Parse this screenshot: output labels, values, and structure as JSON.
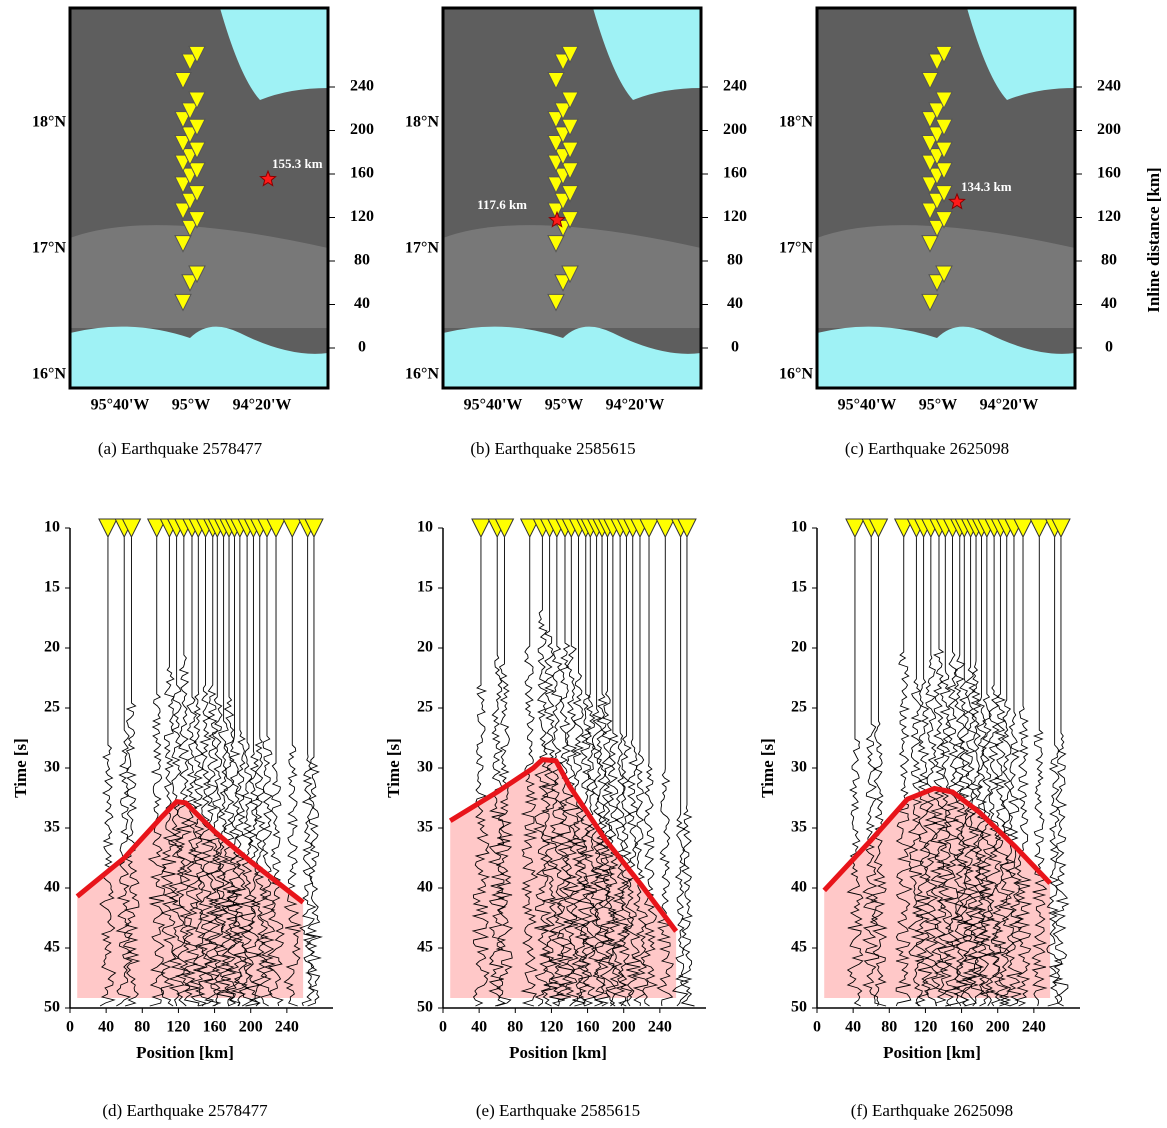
{
  "stations": [
    42,
    60,
    68,
    96,
    110,
    118,
    126,
    135,
    142,
    150,
    158,
    163,
    170,
    176,
    182,
    188,
    196,
    203,
    210,
    218,
    228,
    246,
    263,
    270
  ],
  "maps": {
    "lat_ticks": [
      "16°N",
      "17°N",
      "18°N"
    ],
    "lon_ticks": [
      "95°40'W",
      "95°W",
      "94°20'W"
    ],
    "inline_ticks": [
      0,
      40,
      80,
      120,
      160,
      200,
      240
    ],
    "inline_label": "Inline distance [km]",
    "panels": [
      {
        "caption": "(a) Earthquake 2578477",
        "event_distance": 155.3,
        "event_label": "155.3 km"
      },
      {
        "caption": "(b) Earthquake 2585615",
        "event_distance": 117.6,
        "event_label": "117.6 km"
      },
      {
        "caption": "(c) Earthquake 2625098",
        "event_distance": 134.3,
        "event_label": "134.3 km"
      }
    ]
  },
  "seismograms": {
    "x_label": "Position [km]",
    "y_label": "Time [s]",
    "xlim": [
      0,
      280
    ],
    "ylim": [
      10,
      50
    ],
    "xticks": [
      0,
      40,
      80,
      120,
      160,
      200,
      240
    ],
    "yticks": [
      10,
      15,
      20,
      25,
      30,
      35,
      40,
      45,
      50
    ],
    "panels": [
      {
        "caption": "(d) Earthquake 2578477",
        "curve": {
          "x": [
            8,
            60,
            100,
            118,
            128,
            160,
            200,
            258
          ],
          "y": [
            40.7,
            37.5,
            34.2,
            32.8,
            32.9,
            35.3,
            37.8,
            41.2
          ]
        }
      },
      {
        "caption": "(e) Earthquake 2585615",
        "curve": {
          "x": [
            8,
            60,
            100,
            110,
            125,
            140,
            180,
            220,
            258
          ],
          "y": [
            34.4,
            32,
            30,
            29.3,
            29.4,
            31.5,
            36,
            39.8,
            43.6
          ]
        }
      },
      {
        "caption": "(f) Earthquake 2625098",
        "curve": {
          "x": [
            8,
            60,
            100,
            130,
            150,
            180,
            220,
            258
          ],
          "y": [
            40.2,
            36,
            32.6,
            31.7,
            32,
            33.7,
            36.6,
            39.6
          ]
        }
      }
    ]
  }
}
